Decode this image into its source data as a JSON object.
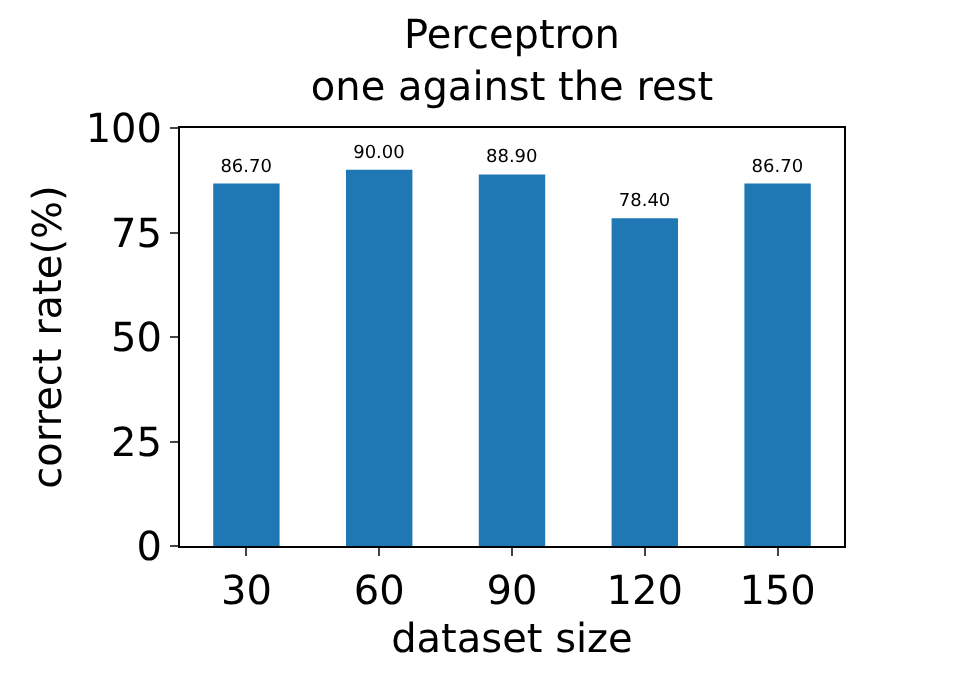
{
  "chart_data": {
    "type": "bar",
    "title": "Perceptron\none against the rest",
    "xlabel": "dataset size",
    "ylabel": "correct rate(%)",
    "categories": [
      "30",
      "60",
      "90",
      "120",
      "150"
    ],
    "values": [
      86.7,
      90.0,
      88.9,
      78.4,
      86.7
    ],
    "value_labels": [
      "86.70",
      "90.00",
      "88.90",
      "78.40",
      "86.70"
    ],
    "color": "#1f77b4",
    "ylim": [
      0,
      100
    ],
    "yticks": [
      0,
      25,
      50,
      75,
      100
    ]
  }
}
